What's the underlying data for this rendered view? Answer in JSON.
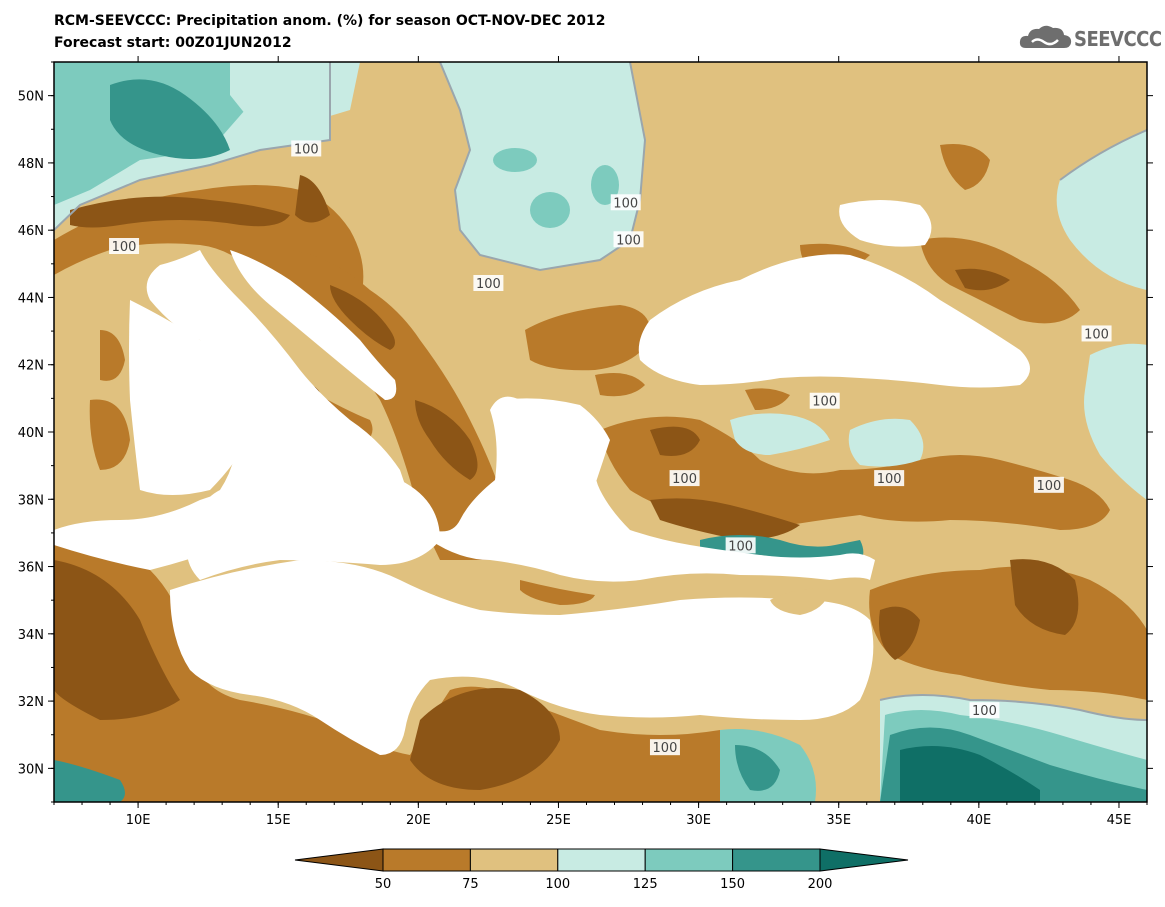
{
  "title": {
    "line1": "RCM-SEEVCCC: Precipitation anom. (%) for season OCT-NOV-DEC 2012",
    "line2": "Forecast start: 00Z01JUN2012"
  },
  "logo": {
    "text": "SEEVCCC",
    "icon": "cloud-icon"
  },
  "map": {
    "lon_range": [
      7,
      46
    ],
    "lat_range": [
      29,
      51
    ],
    "lon_ticks": [
      "10E",
      "15E",
      "20E",
      "25E",
      "30E",
      "35E",
      "40E",
      "45E"
    ],
    "lat_ticks": [
      "50N",
      "48N",
      "46N",
      "44N",
      "42N",
      "40N",
      "38N",
      "36N",
      "34N",
      "32N",
      "30N"
    ],
    "contour_labels": [
      "100",
      "100",
      "100",
      "100",
      "100",
      "100",
      "100",
      "100",
      "100",
      "100",
      "100",
      "100",
      "100"
    ]
  },
  "colorbar": {
    "labels": [
      "50",
      "75",
      "100",
      "125",
      "150",
      "200"
    ],
    "colors": [
      "#8c5516",
      "#b97a2a",
      "#e0c17f",
      "#c8ebe3",
      "#7dcbbe",
      "#35958b",
      "#0f6f66"
    ]
  },
  "colors": {
    "sea": "#ffffff",
    "background_land": "#e0c17f",
    "very_dry": "#8c5516",
    "dry": "#b97a2a",
    "near_normal": "#e0c17f",
    "wet": "#c8ebe3",
    "very_wet": "#7dcbbe",
    "extremely_wet": "#35958b",
    "wettest": "#0f6f66"
  }
}
